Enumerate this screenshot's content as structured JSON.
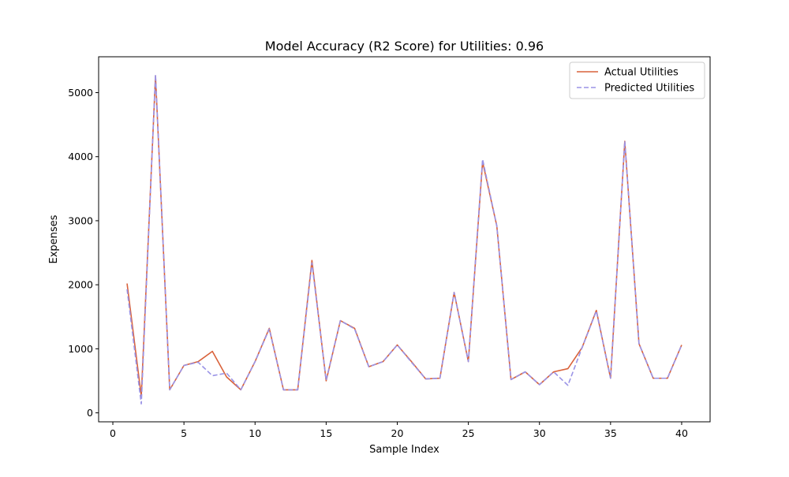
{
  "chart_data": {
    "type": "line",
    "title": "Model Accuracy (R2 Score) for Utilities: 0.96",
    "xlabel": "Sample Index",
    "ylabel": "Expenses",
    "xlim": [
      -1,
      42
    ],
    "ylim": [
      -140,
      5560
    ],
    "xticks": [
      0,
      5,
      10,
      15,
      20,
      25,
      30,
      35,
      40
    ],
    "yticks": [
      0,
      1000,
      2000,
      3000,
      4000,
      5000
    ],
    "grid": false,
    "legend_position": "top-right",
    "x": [
      1,
      2,
      3,
      4,
      5,
      6,
      7,
      8,
      9,
      10,
      11,
      12,
      13,
      14,
      15,
      16,
      17,
      18,
      19,
      20,
      21,
      22,
      23,
      24,
      25,
      26,
      27,
      28,
      29,
      30,
      31,
      32,
      33,
      34,
      35,
      36,
      37,
      38,
      39,
      40
    ],
    "series": [
      {
        "name": "Actual Utilities",
        "color": "#d9623b",
        "dash": "solid",
        "values": [
          2020,
          260,
          5260,
          360,
          740,
          800,
          960,
          560,
          360,
          800,
          1320,
          360,
          360,
          2380,
          500,
          1440,
          1320,
          720,
          800,
          1060,
          800,
          530,
          540,
          1880,
          800,
          3920,
          2920,
          520,
          640,
          440,
          640,
          690,
          1020,
          1600,
          540,
          4240,
          1080,
          540,
          540,
          1060
        ]
      },
      {
        "name": "Predicted Utilities",
        "color": "#9a93e6",
        "dash": "dashed",
        "values": [
          1930,
          140,
          5280,
          360,
          740,
          790,
          580,
          620,
          360,
          800,
          1310,
          360,
          360,
          2340,
          510,
          1440,
          1310,
          720,
          800,
          1060,
          790,
          530,
          540,
          1880,
          800,
          3960,
          2920,
          520,
          640,
          440,
          640,
          430,
          1020,
          1590,
          540,
          4240,
          1080,
          540,
          540,
          1060
        ]
      }
    ]
  }
}
